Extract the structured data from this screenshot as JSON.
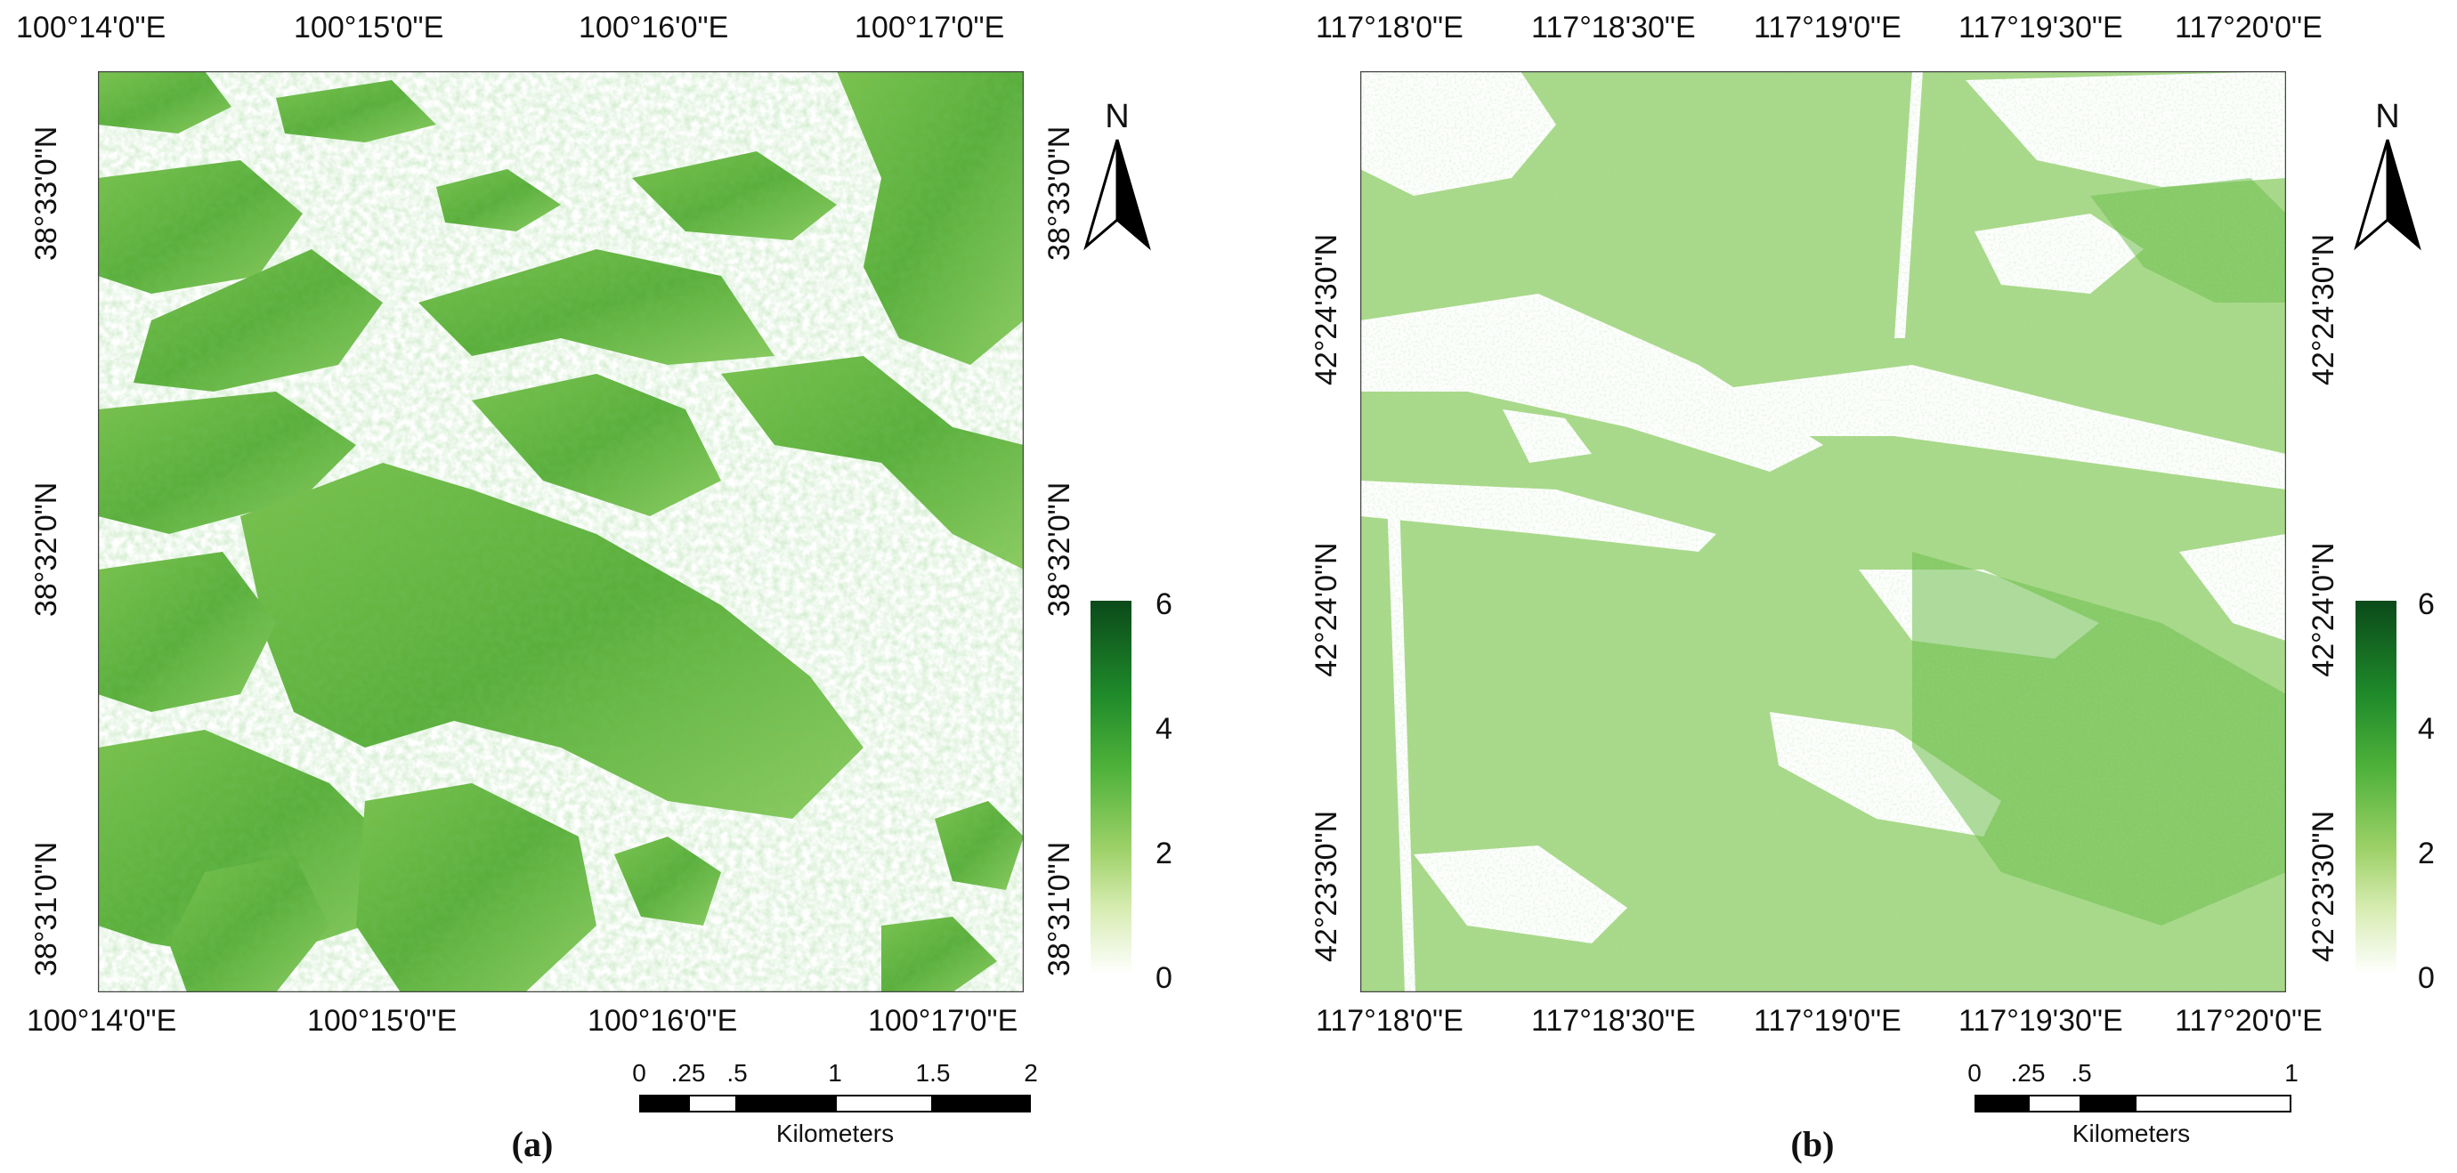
{
  "panel_a": {
    "caption": "(a)",
    "top_lon_labels": [
      "100°14'0\"E",
      "100°15'0\"E",
      "100°16'0\"E",
      "100°17'0\"E"
    ],
    "bottom_lon_labels": [
      "100°14'0\"E",
      "100°15'0\"E",
      "100°16'0\"E",
      "100°17'0\"E"
    ],
    "left_lat_labels": [
      "38°33'0\"N",
      "38°32'0\"N",
      "38°31'0\"N"
    ],
    "right_lat_labels": [
      "38°33'0\"N",
      "38°32'0\"N",
      "38°31'0\"N"
    ],
    "north_label": "N",
    "legend": {
      "max": "6",
      "mid_high": "4",
      "mid_low": "2",
      "min": "0"
    },
    "scale": {
      "ticks": [
        "0",
        ".25",
        ".5",
        "1",
        "1.5",
        "2"
      ],
      "unit": "Kilometers"
    }
  },
  "panel_b": {
    "caption": "(b)",
    "top_lon_labels": [
      "117°18'0\"E",
      "117°18'30\"E",
      "117°19'0\"E",
      "117°19'30\"E",
      "117°20'0\"E"
    ],
    "bottom_lon_labels": [
      "117°18'0\"E",
      "117°18'30\"E",
      "117°19'0\"E",
      "117°19'30\"E",
      "117°20'0\"E"
    ],
    "left_lat_labels": [
      "42°24'30\"N",
      "42°24'0\"N",
      "42°23'30\"N"
    ],
    "right_lat_labels": [
      "42°24'30\"N",
      "42°24'0\"N",
      "42°23'30\"N"
    ],
    "north_label": "N",
    "legend": {
      "max": "6",
      "mid_high": "4",
      "mid_low": "2",
      "min": "0"
    },
    "scale": {
      "ticks": [
        "0",
        ".25",
        ".5",
        "1"
      ],
      "unit": "Kilometers"
    }
  },
  "colors": {
    "vegetation_light": "#b9df8f",
    "vegetation_mid": "#6dbb45",
    "vegetation_dark": "#2f8a2b",
    "legend_max": "#0b4a1a"
  }
}
